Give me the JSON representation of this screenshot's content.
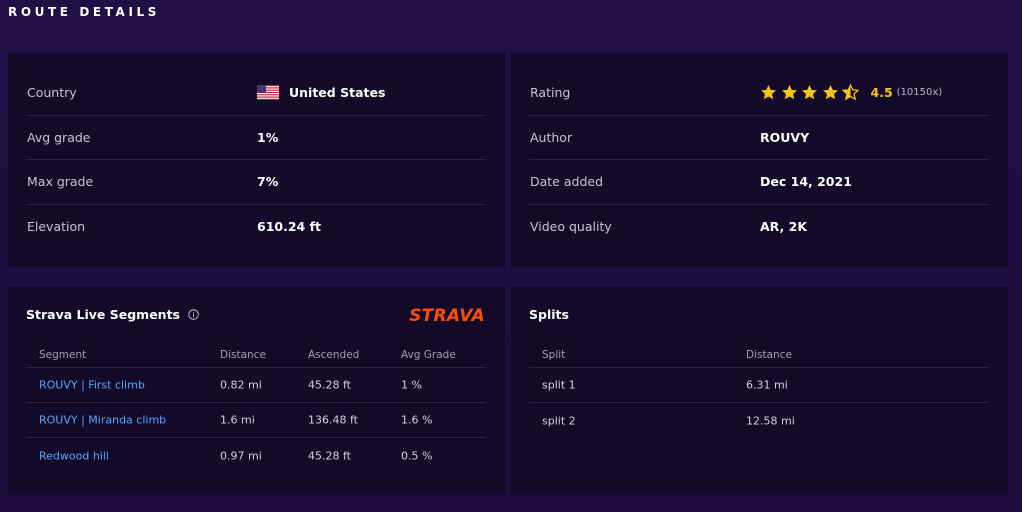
{
  "header": {
    "title": "ROUTE DETAILS"
  },
  "details_left": [
    {
      "label": "Country",
      "value": "United States",
      "icon": "us-flag-icon"
    },
    {
      "label": "Avg grade",
      "value": "1%"
    },
    {
      "label": "Max grade",
      "value": "7%"
    },
    {
      "label": "Elevation",
      "value": "610.24 ft"
    }
  ],
  "details_right": {
    "rating": {
      "label": "Rating",
      "stars": 4.5,
      "value": "4.5",
      "count": "(10150x)"
    },
    "rows": [
      {
        "label": "Author",
        "value": "ROUVY"
      },
      {
        "label": "Date added",
        "value": "Dec 14, 2021"
      },
      {
        "label": "Video quality",
        "value": "AR, 2K"
      }
    ]
  },
  "strava": {
    "title": "Strava Live Segments",
    "logo": "STRAVA",
    "columns": [
      "Segment",
      "Distance",
      "Ascended",
      "Avg Grade"
    ],
    "rows": [
      {
        "segment": "ROUVY | First climb",
        "distance": "0.82 mi",
        "ascended": "45.28 ft",
        "grade": "1 %"
      },
      {
        "segment": "ROUVY | Miranda climb",
        "distance": "1.6 mi",
        "ascended": "136.48 ft",
        "grade": "1.6 %"
      },
      {
        "segment": "Redwood hill",
        "distance": "0.97 mi",
        "ascended": "45.28 ft",
        "grade": "0.5 %"
      }
    ]
  },
  "splits": {
    "title": "Splits",
    "columns": [
      "Split",
      "Distance"
    ],
    "rows": [
      {
        "split": "split 1",
        "distance": "6.31 mi"
      },
      {
        "split": "split 2",
        "distance": "12.58 mi"
      }
    ]
  },
  "colors": {
    "accent_star": "#f5c518",
    "link": "#53a7ff",
    "strava": "#fc4c02"
  }
}
